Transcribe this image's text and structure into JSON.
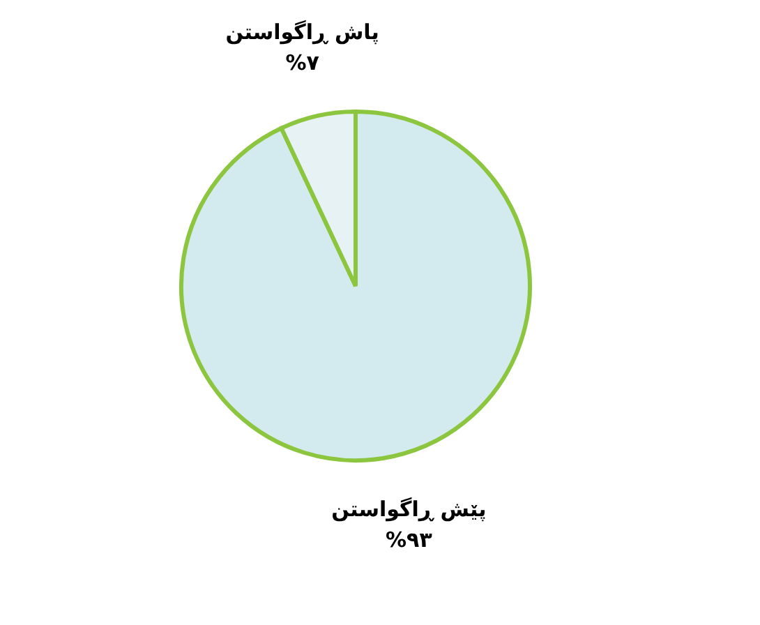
{
  "chart_data": {
    "type": "pie",
    "categories": [
      "پێش ڕاگواستن",
      "پاش ڕاگواستن"
    ],
    "values": [
      93,
      7
    ],
    "colors": [
      "#d3eaee",
      "#e6f2f4"
    ],
    "value_labels": [
      "%۹۳",
      "%۷"
    ]
  }
}
